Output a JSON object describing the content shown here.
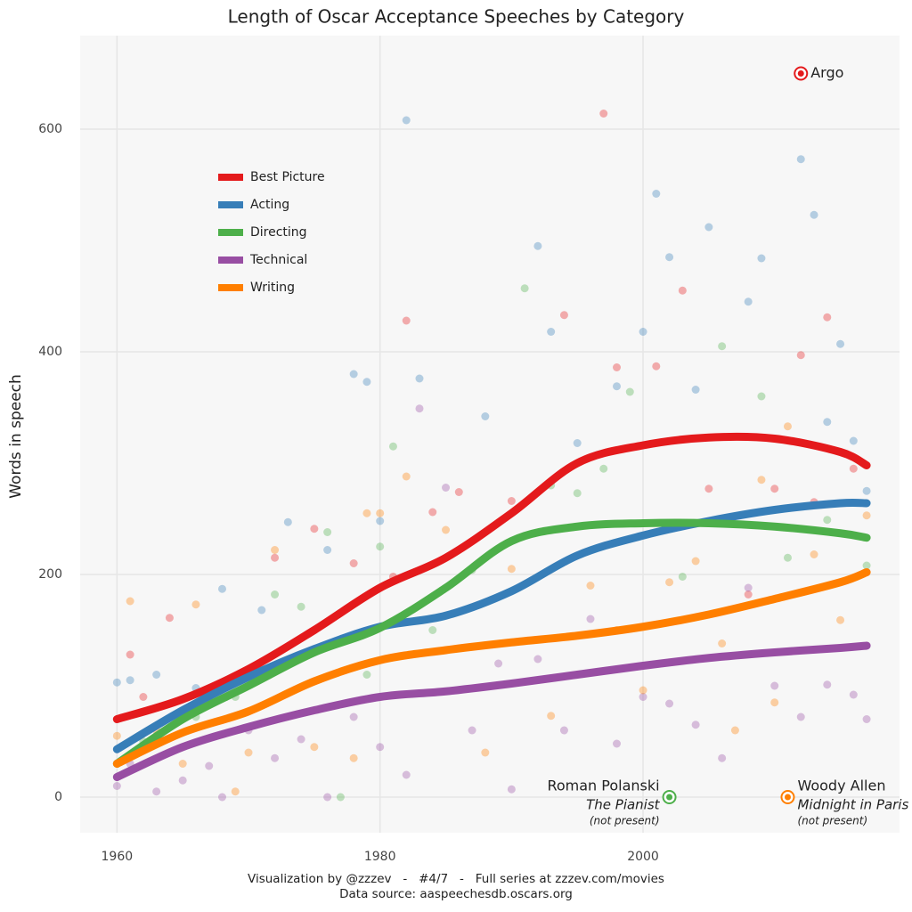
{
  "chart_data": {
    "type": "line",
    "title": "Length of Oscar Acceptance Speeches by Category",
    "y_label": "Words in speech",
    "footer": [
      "Visualization by @zzzev   -   #4/7   -   Full series at zzzev.com/movies",
      "Data source: aaspeechesdb.oscars.org"
    ],
    "xlim": [
      1957.2,
      2019.5
    ],
    "ylim": [
      -32,
      684
    ],
    "xticks": [
      1960,
      1980,
      2000
    ],
    "yticks": [
      0,
      200,
      400,
      600
    ],
    "grid": true,
    "x": [
      1960,
      1965,
      1970,
      1975,
      1980,
      1985,
      1990,
      1995,
      2000,
      2005,
      2010,
      2015,
      2017
    ],
    "series": [
      {
        "name": "Best Picture",
        "color": "#e41a1c",
        "values": [
          70,
          88,
          115,
          150,
          188,
          215,
          255,
          300,
          316,
          323,
          322,
          310,
          298
        ],
        "points": {
          "x": [
            1960,
            1961,
            1962,
            1964,
            1967,
            1972,
            1975,
            1978,
            1981,
            1982,
            1984,
            1986,
            1990,
            1994,
            1997,
            1998,
            2001,
            2003,
            2005,
            2008,
            2010,
            2012,
            2013,
            2014,
            2016
          ],
          "y": [
            70,
            128,
            90,
            161,
            88,
            215,
            241,
            210,
            198,
            428,
            256,
            274,
            266,
            433,
            614,
            386,
            387,
            455,
            277,
            182,
            277,
            397,
            265,
            431,
            295
          ]
        }
      },
      {
        "name": "Acting",
        "color": "#377eb8",
        "values": [
          43,
          78,
          108,
          133,
          153,
          163,
          185,
          217,
          235,
          248,
          258,
          264,
          264
        ],
        "points": {
          "x": [
            1960,
            1961,
            1963,
            1966,
            1968,
            1971,
            1973,
            1976,
            1978,
            1979,
            1980,
            1982,
            1983,
            1988,
            1992,
            1993,
            1995,
            1998,
            2000,
            2001,
            2002,
            2004,
            2005,
            2008,
            2009,
            2012,
            2013,
            2014,
            2015,
            2016,
            2017
          ],
          "y": [
            103,
            105,
            110,
            98,
            187,
            168,
            247,
            222,
            380,
            373,
            248,
            608,
            376,
            342,
            495,
            418,
            318,
            369,
            418,
            542,
            485,
            366,
            512,
            445,
            484,
            573,
            523,
            337,
            407,
            320,
            275
          ]
        }
      },
      {
        "name": "Directing",
        "color": "#4daf4a",
        "values": [
          30,
          70,
          100,
          130,
          152,
          188,
          230,
          243,
          246,
          246,
          243,
          237,
          233
        ],
        "points": {
          "x": [
            1962,
            1966,
            1969,
            1972,
            1974,
            1976,
            1977,
            1979,
            1980,
            1981,
            1984,
            1987,
            1991,
            1993,
            1995,
            1997,
            1999,
            2003,
            2006,
            2009,
            2011,
            2014,
            2017
          ],
          "y": [
            50,
            72,
            90,
            182,
            171,
            238,
            0,
            110,
            225,
            315,
            150,
            204,
            457,
            280,
            273,
            295,
            364,
            198,
            405,
            360,
            215,
            249,
            208
          ]
        }
      },
      {
        "name": "Technical",
        "color": "#984ea3",
        "values": [
          18,
          45,
          63,
          78,
          90,
          95,
          102,
          110,
          118,
          125,
          130,
          134,
          136
        ],
        "points": {
          "x": [
            1960,
            1961,
            1963,
            1965,
            1967,
            1968,
            1970,
            1972,
            1974,
            1976,
            1978,
            1980,
            1982,
            1983,
            1985,
            1987,
            1989,
            1990,
            1992,
            1994,
            1996,
            1998,
            2000,
            2002,
            2004,
            2006,
            2008,
            2010,
            2012,
            2014,
            2016,
            2017
          ],
          "y": [
            10,
            30,
            5,
            15,
            28,
            0,
            60,
            35,
            52,
            0,
            72,
            45,
            20,
            349,
            278,
            60,
            120,
            7,
            124,
            60,
            160,
            48,
            90,
            84,
            65,
            35,
            188,
            100,
            72,
            101,
            92,
            70
          ]
        }
      },
      {
        "name": "Writing",
        "color": "#ff7f00",
        "values": [
          30,
          58,
          77,
          104,
          123,
          132,
          139,
          145,
          153,
          164,
          178,
          193,
          202
        ],
        "points": {
          "x": [
            1960,
            1961,
            1963,
            1965,
            1966,
            1969,
            1970,
            1972,
            1975,
            1978,
            1979,
            1980,
            1982,
            1985,
            1988,
            1990,
            1993,
            1996,
            1998,
            2000,
            2002,
            2004,
            2006,
            2007,
            2009,
            2010,
            2011,
            2013,
            2015,
            2017
          ],
          "y": [
            55,
            176,
            60,
            30,
            173,
            5,
            40,
            222,
            45,
            35,
            255,
            255,
            288,
            240,
            40,
            205,
            73,
            190,
            150,
            96,
            193,
            212,
            138,
            60,
            285,
            85,
            333,
            218,
            159,
            253
          ]
        }
      }
    ],
    "annotations": [
      {
        "x": 2012,
        "y": 650,
        "color": "#e41a1c",
        "side": "right",
        "lines": [
          "Argo"
        ]
      },
      {
        "x": 2002,
        "y": 0,
        "color": "#4daf4a",
        "side": "left",
        "lines": [
          "Roman Polanski",
          "The Pianist",
          "(not present)"
        ]
      },
      {
        "x": 2011,
        "y": 0,
        "color": "#ff7f00",
        "side": "right",
        "lines": [
          "Woody Allen",
          "Midnight in Paris",
          "(not present)"
        ]
      }
    ]
  }
}
